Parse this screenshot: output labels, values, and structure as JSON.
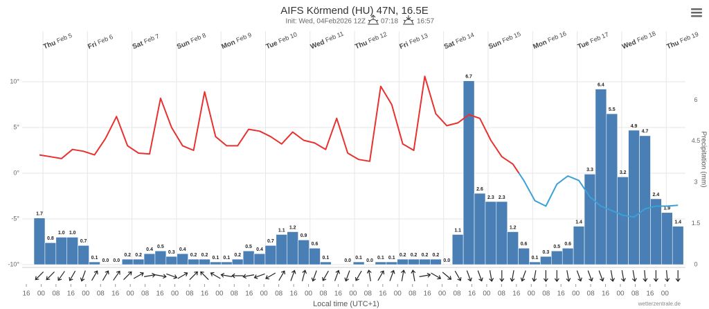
{
  "chart_data": {
    "type": "combo",
    "title": "AIFS Körmend (HU) 47N, 16.5E",
    "subtitle": "Init: Wed, 04Feb2026 12Z",
    "sunrise": "07:18",
    "sunset": "16:57",
    "xlabel": "Local time (UTC+1)",
    "y2label": "Precipitation (mm)",
    "credit": "wetterzentrale.de",
    "grid": true,
    "ylim": [
      -10,
      12.5
    ],
    "yticks": [
      {
        "value": -10,
        "label": "-10°"
      },
      {
        "value": -5,
        "label": "-5°"
      },
      {
        "value": 0,
        "label": "0°"
      },
      {
        "value": 5,
        "label": "5°"
      },
      {
        "value": 10,
        "label": "10°"
      }
    ],
    "y2lim": [
      0,
      7.5
    ],
    "y2ticks": [
      0,
      1.5,
      3,
      4.5,
      6
    ],
    "time_labels": [
      "16",
      "00",
      "08",
      "16",
      "00",
      "08",
      "16",
      "00",
      "08",
      "16",
      "00",
      "08",
      "16",
      "00",
      "08",
      "16",
      "00",
      "08",
      "16",
      "00",
      "08",
      "16",
      "00",
      "08",
      "16",
      "00",
      "08",
      "16",
      "00",
      "08",
      "16",
      "00",
      "08",
      "16",
      "00",
      "08",
      "16",
      "00",
      "08",
      "16",
      "00",
      "08",
      "16",
      "00"
    ],
    "days": [
      {
        "weekday": "Thu",
        "date": "Feb 5"
      },
      {
        "weekday": "Fri",
        "date": "Feb 6"
      },
      {
        "weekday": "Sat",
        "date": "Feb 7"
      },
      {
        "weekday": "Sun",
        "date": "Feb 8"
      },
      {
        "weekday": "Mon",
        "date": "Feb 9"
      },
      {
        "weekday": "Tue",
        "date": "Feb 10"
      },
      {
        "weekday": "Wed",
        "date": "Feb 11"
      },
      {
        "weekday": "Thu",
        "date": "Feb 12"
      },
      {
        "weekday": "Fri",
        "date": "Feb 13"
      },
      {
        "weekday": "Sat",
        "date": "Feb 14"
      },
      {
        "weekday": "Sun",
        "date": "Feb 15"
      },
      {
        "weekday": "Mon",
        "date": "Feb 16"
      },
      {
        "weekday": "Tue",
        "date": "Feb 17"
      },
      {
        "weekday": "Wed",
        "date": "Feb 18"
      },
      {
        "weekday": "Thu",
        "date": "Feb 19"
      }
    ],
    "series": [
      {
        "type": "bar",
        "axis": "y2",
        "color": "#4a7fb5",
        "values": [
          1.7,
          0.8,
          1.0,
          1.0,
          0.7,
          0.1,
          0.0,
          0.0,
          0.2,
          0.2,
          0.4,
          0.5,
          0.3,
          0.4,
          0.2,
          0.2,
          0.1,
          0.1,
          0.2,
          0.5,
          0.4,
          0.7,
          1.1,
          1.2,
          0.9,
          0.6,
          0.1,
          0,
          0.0,
          0.1,
          0.0,
          0.1,
          0.1,
          0.2,
          0.2,
          0.2,
          0.2,
          0.0,
          1.1,
          6.7,
          2.6,
          2.3,
          2.3,
          1.2,
          0.6,
          0.1,
          0.3,
          0.5,
          0.6,
          1.4,
          3.3,
          6.4,
          5.5,
          3.2,
          4.9,
          4.7,
          2.4,
          1.9,
          1.4
        ],
        "value_labels": [
          "1.7",
          "0.8",
          "1.0",
          "1.0",
          "0.7",
          "0.1",
          "0.0",
          "0.0",
          "0.2",
          "0.2",
          "0.4",
          "0.5",
          "0.3",
          "0.4",
          "0.2",
          "0.2",
          "0.1",
          "0.1",
          "0.2",
          "0.5",
          "0.4",
          "0.7",
          "1.1",
          "1.2",
          "0.9",
          "0.6",
          "0.1",
          null,
          "0.0",
          "0.1",
          "0.0",
          "0.1",
          "0.1",
          "0.2",
          "0.2",
          "0.2",
          "0.2",
          "0.0",
          "1.1",
          "6.7",
          "2.6",
          "2.3",
          "2.3",
          "1.2",
          "0.6",
          "0.1",
          "0.3",
          "0.5",
          "0.6",
          "1.4",
          "3.3",
          "6.4",
          "5.5",
          "3.2",
          "4.9",
          "4.7",
          "2.4",
          "1.9",
          "1.4"
        ]
      },
      {
        "type": "line",
        "color": "#e8302f",
        "zone_color": "#3aa0d8",
        "zone_threshold": 0,
        "values": [
          2.0,
          1.8,
          1.6,
          2.6,
          2.4,
          2.0,
          3.8,
          6.2,
          3.0,
          2.2,
          2.1,
          8.2,
          5.0,
          3.0,
          2.5,
          8.9,
          4.0,
          3.0,
          3.0,
          4.8,
          4.6,
          4.0,
          3.2,
          4.5,
          3.6,
          3.3,
          2.6,
          6.0,
          2.2,
          1.5,
          1.3,
          9.5,
          7.5,
          3.2,
          2.5,
          10.6,
          6.5,
          5.2,
          5.5,
          6.4,
          6.0,
          3.6,
          1.8,
          1.0,
          -0.8,
          -3.0,
          -3.6,
          -1.2,
          -0.3,
          -0.8,
          -2.6,
          -3.6,
          -4.1,
          -4.6,
          -4.8,
          -3.9,
          -3.6,
          -3.6,
          -3.5
        ]
      }
    ],
    "wind_direction": [
      225,
      225,
      215,
      210,
      200,
      30,
      30,
      35,
      45,
      60,
      80,
      100,
      110,
      60,
      45,
      315,
      300,
      280,
      270,
      260,
      250,
      240,
      30,
      20,
      15,
      200,
      210,
      20,
      200,
      210,
      350,
      30,
      20,
      10,
      350,
      80,
      120,
      130,
      150,
      160,
      160,
      170,
      180,
      190,
      200,
      190,
      180,
      180,
      170,
      160,
      160,
      160,
      170,
      170,
      170,
      175,
      180,
      175,
      180
    ]
  }
}
